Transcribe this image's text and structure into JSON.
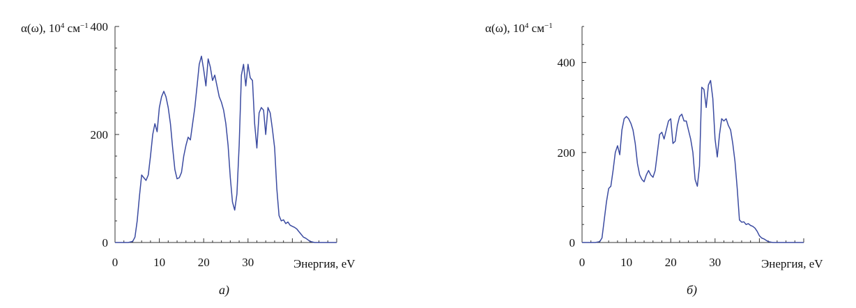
{
  "chart_data": [
    {
      "type": "line",
      "panel_label": "a)",
      "ylabel_main": "α(ω), 10",
      "ylabel_sup": "4",
      "ylabel_unit": " см",
      "ylabel_unit_sup": "−1",
      "xlabel": "Энергия, eV",
      "xlim": [
        0,
        50
      ],
      "ylim": [
        0,
        400
      ],
      "xticks": [
        0,
        10,
        20,
        30
      ],
      "yticks": [
        0,
        200,
        400
      ],
      "series_color": "#3a4aa0",
      "x": [
        0,
        3,
        4,
        4.5,
        5,
        5.5,
        6,
        6.5,
        7,
        7.5,
        8,
        8.5,
        9,
        9.5,
        10,
        10.5,
        11,
        11.5,
        12,
        12.5,
        13,
        13.5,
        14,
        14.5,
        15,
        15.5,
        16,
        16.5,
        17,
        17.5,
        18,
        18.5,
        19,
        19.5,
        20,
        20.5,
        21,
        21.5,
        22,
        22.5,
        23,
        23.5,
        24,
        24.5,
        25,
        25.5,
        26,
        26.5,
        27,
        27.5,
        28,
        28.5,
        29,
        29.5,
        30,
        30.5,
        31,
        31.5,
        32,
        32.5,
        33,
        33.5,
        34,
        34.5,
        35,
        35.5,
        36,
        36.5,
        37,
        37.5,
        38,
        38.5,
        39,
        39.5,
        40,
        40.5,
        41,
        41.5,
        42,
        42.5,
        43,
        44,
        45,
        47,
        50
      ],
      "y": [
        0,
        0,
        2,
        10,
        40,
        85,
        125,
        120,
        115,
        125,
        160,
        200,
        220,
        205,
        250,
        270,
        280,
        270,
        250,
        220,
        175,
        135,
        118,
        120,
        130,
        160,
        180,
        195,
        190,
        220,
        250,
        290,
        330,
        345,
        320,
        290,
        340,
        325,
        300,
        310,
        290,
        270,
        260,
        245,
        220,
        180,
        120,
        75,
        60,
        90,
        180,
        310,
        330,
        290,
        330,
        305,
        300,
        220,
        175,
        240,
        250,
        245,
        200,
        250,
        240,
        210,
        175,
        100,
        50,
        40,
        42,
        35,
        38,
        32,
        30,
        28,
        25,
        20,
        15,
        10,
        8,
        2,
        0,
        0,
        0
      ]
    },
    {
      "type": "line",
      "panel_label": "б)",
      "ylabel_main": "α(ω), 10",
      "ylabel_sup": "4",
      "ylabel_unit": " см",
      "ylabel_unit_sup": "−1",
      "xlabel": "Энергия, eV",
      "xlim": [
        0,
        50
      ],
      "ylim": [
        0,
        480
      ],
      "xticks": [
        0,
        10,
        20,
        30
      ],
      "yticks": [
        0,
        200,
        400
      ],
      "series_color": "#3a4aa0",
      "x": [
        0,
        3,
        4,
        4.5,
        5,
        5.5,
        6,
        6.5,
        7,
        7.5,
        8,
        8.5,
        9,
        9.5,
        10,
        10.5,
        11,
        11.5,
        12,
        12.5,
        13,
        13.5,
        14,
        14.5,
        15,
        15.5,
        16,
        16.5,
        17,
        17.5,
        18,
        18.5,
        19,
        19.5,
        20,
        20.5,
        21,
        21.5,
        22,
        22.5,
        23,
        23.5,
        24,
        24.5,
        25,
        25.5,
        26,
        26.5,
        27,
        27.5,
        28,
        28.5,
        29,
        29.5,
        30,
        30.5,
        31,
        31.5,
        32,
        32.5,
        33,
        33.5,
        34,
        34.5,
        35,
        35.5,
        36,
        36.5,
        37,
        37.5,
        38,
        38.5,
        39,
        39.5,
        40,
        40.5,
        41,
        41.5,
        42,
        43,
        45,
        50
      ],
      "y": [
        0,
        0,
        2,
        10,
        50,
        90,
        120,
        125,
        160,
        200,
        215,
        195,
        250,
        275,
        280,
        275,
        265,
        250,
        220,
        175,
        150,
        140,
        135,
        150,
        160,
        150,
        145,
        160,
        200,
        240,
        245,
        230,
        250,
        270,
        275,
        220,
        225,
        260,
        280,
        285,
        270,
        270,
        250,
        230,
        200,
        140,
        125,
        170,
        345,
        340,
        300,
        350,
        360,
        320,
        230,
        190,
        240,
        275,
        270,
        275,
        260,
        250,
        220,
        180,
        120,
        50,
        45,
        46,
        40,
        42,
        38,
        36,
        32,
        25,
        15,
        10,
        8,
        5,
        2,
        0,
        0,
        0
      ]
    }
  ]
}
